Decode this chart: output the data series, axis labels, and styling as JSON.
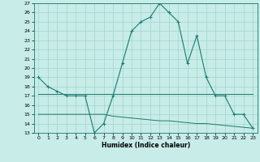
{
  "x": [
    0,
    1,
    2,
    3,
    4,
    5,
    6,
    7,
    8,
    9,
    10,
    11,
    12,
    13,
    14,
    15,
    16,
    17,
    18,
    19,
    20,
    21,
    22,
    23
  ],
  "humidex": [
    19.0,
    18.0,
    17.5,
    17.0,
    17.0,
    17.0,
    13.0,
    14.0,
    17.0,
    20.5,
    24.0,
    25.0,
    25.5,
    27.0,
    26.0,
    25.0,
    20.5,
    23.5,
    19.0,
    17.0,
    17.0,
    15.0,
    15.0,
    13.5
  ],
  "max_line": [
    17.2,
    17.2,
    17.2,
    17.2,
    17.2,
    17.2,
    17.2,
    17.2,
    17.2,
    17.2,
    17.2,
    17.2,
    17.2,
    17.2,
    17.2,
    17.2,
    17.2,
    17.2,
    17.2,
    17.2,
    17.2,
    17.2,
    17.2,
    17.2
  ],
  "min_line": [
    15.0,
    15.0,
    15.0,
    15.0,
    15.0,
    15.0,
    15.0,
    15.0,
    14.8,
    14.7,
    14.6,
    14.5,
    14.4,
    14.3,
    14.3,
    14.2,
    14.1,
    14.0,
    14.0,
    13.9,
    13.8,
    13.7,
    13.6,
    13.5
  ],
  "line_color": "#1a7a6e",
  "bg_color": "#c8ece8",
  "grid_color": "#a0d4cc",
  "ylim": [
    13,
    27
  ],
  "xlim": [
    -0.5,
    23.5
  ],
  "yticks": [
    13,
    14,
    15,
    16,
    17,
    18,
    19,
    20,
    21,
    22,
    23,
    24,
    25,
    26,
    27
  ],
  "xticks": [
    0,
    1,
    2,
    3,
    4,
    5,
    6,
    7,
    8,
    9,
    10,
    11,
    12,
    13,
    14,
    15,
    16,
    17,
    18,
    19,
    20,
    21,
    22,
    23
  ],
  "xlabel": "Humidex (Indice chaleur)"
}
